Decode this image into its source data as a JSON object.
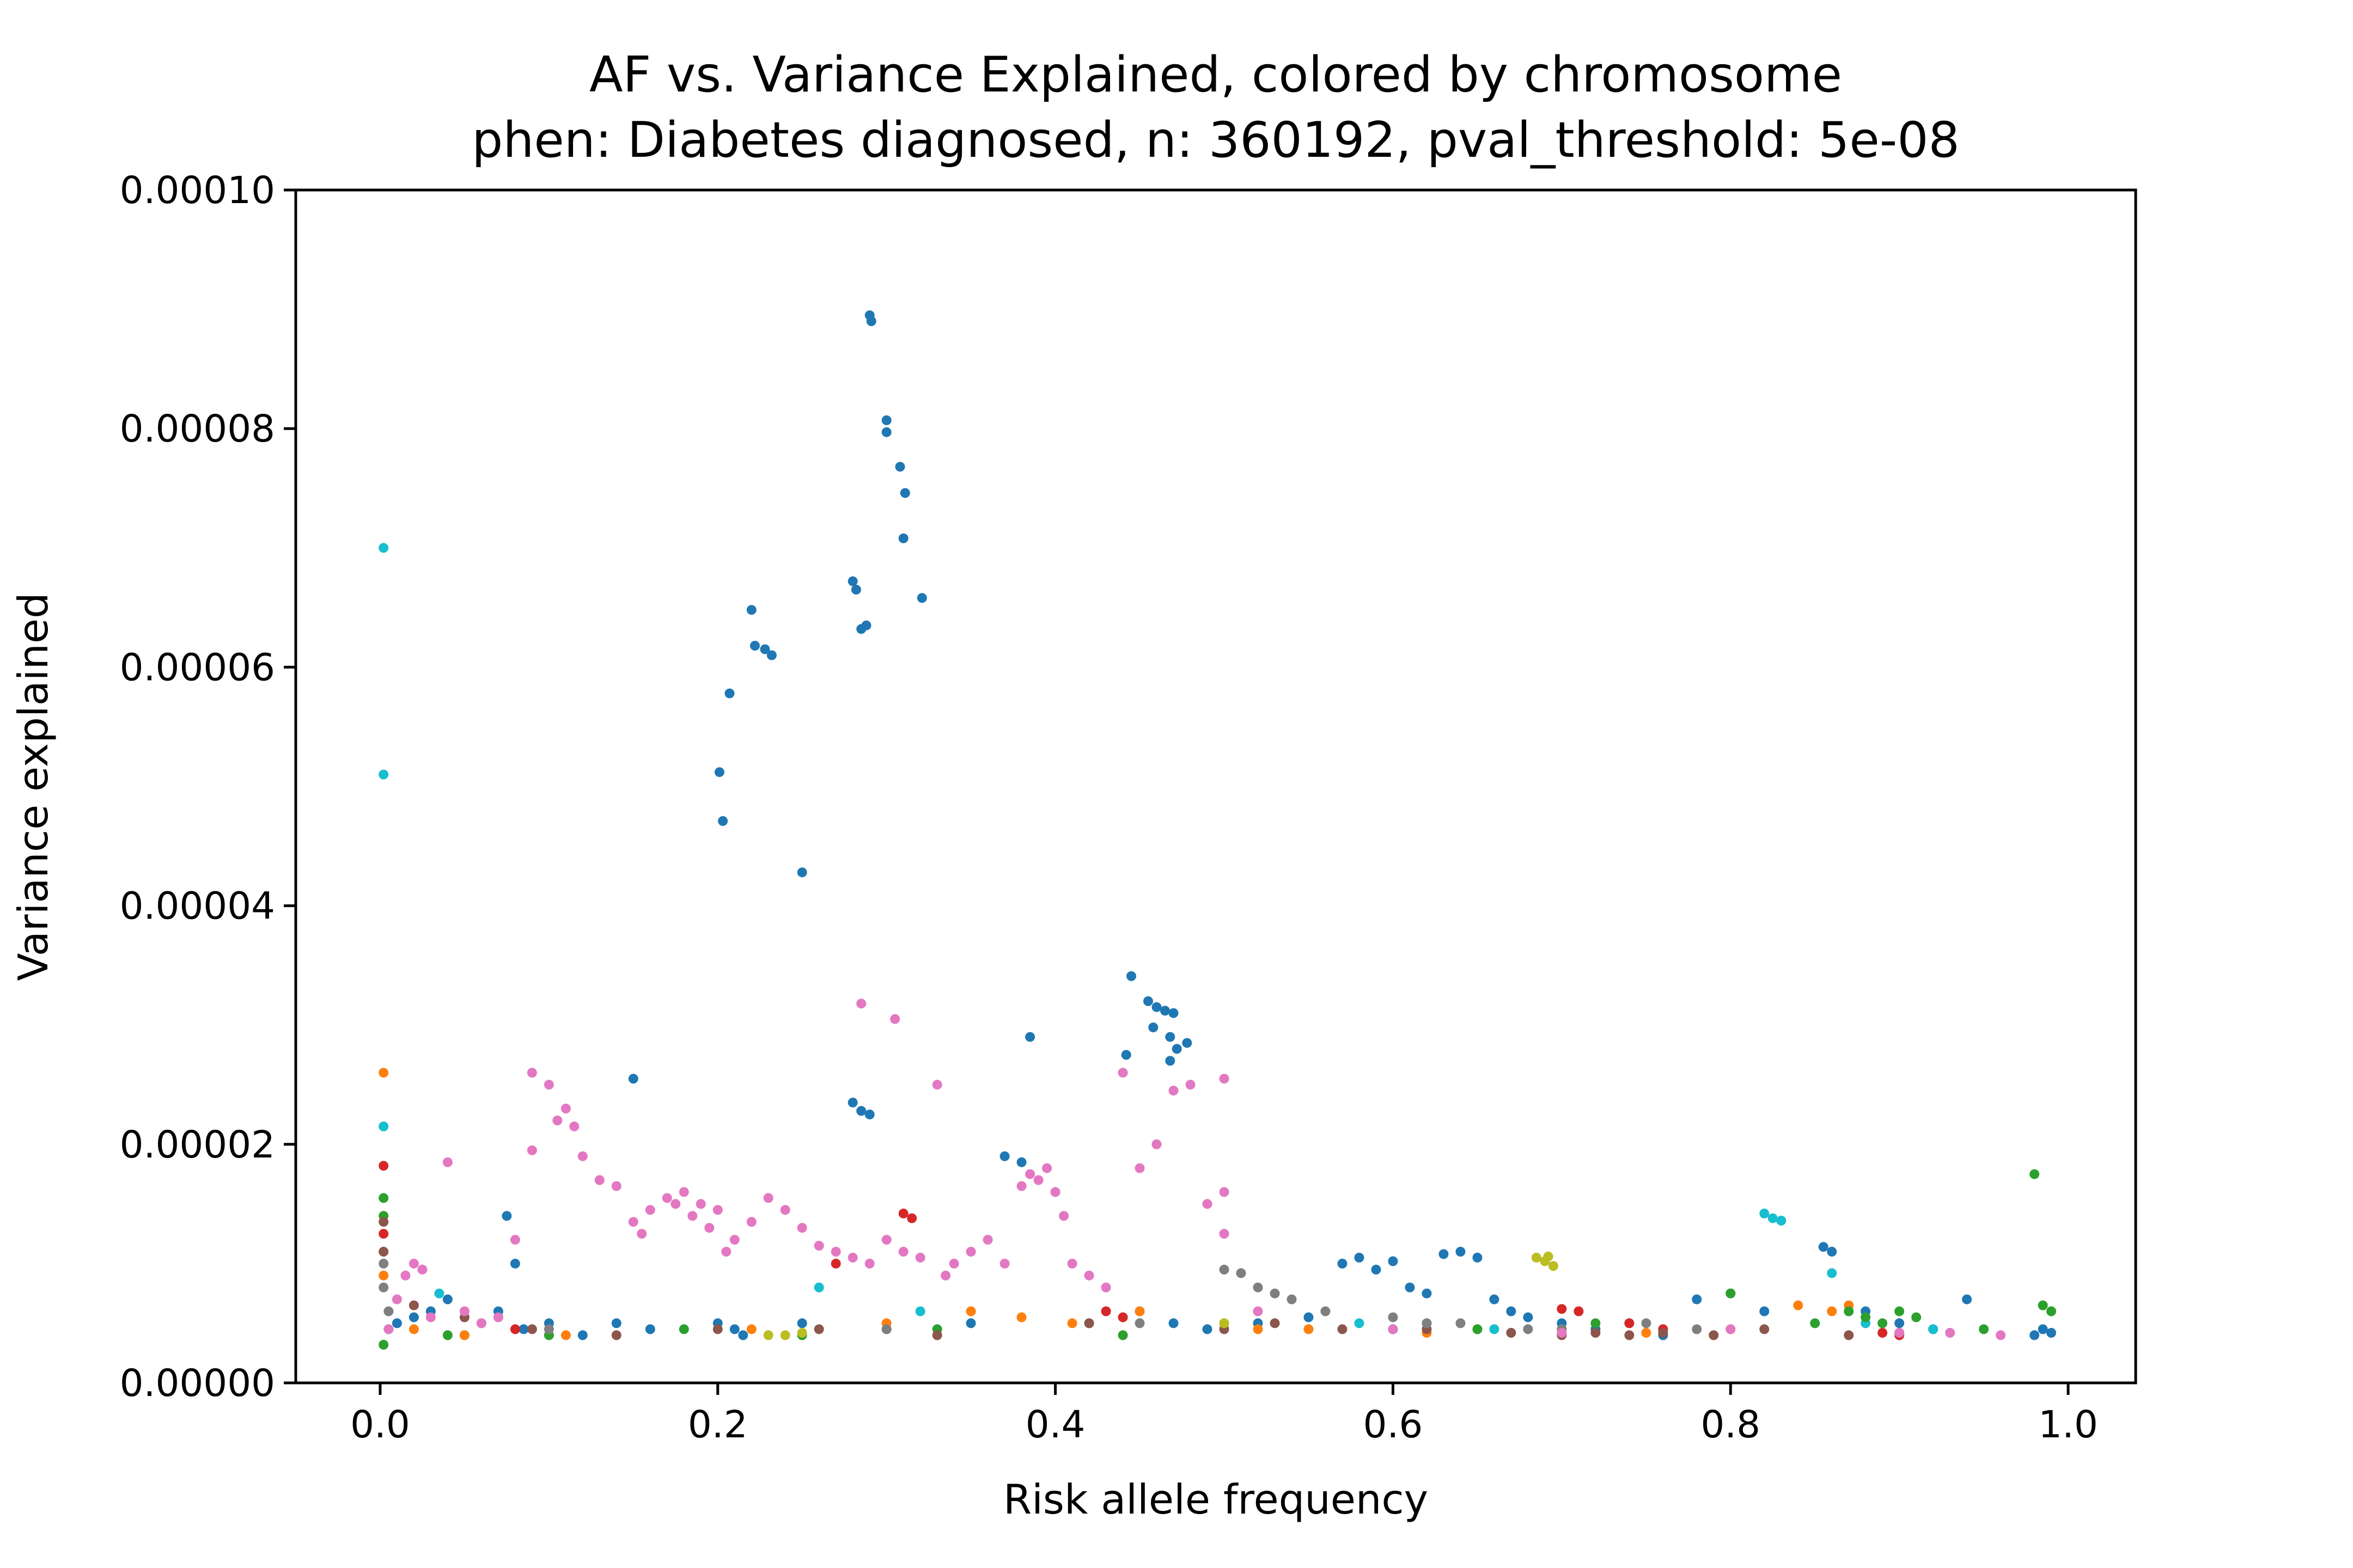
{
  "chart_data": {
    "type": "scatter",
    "title": "AF vs. Variance Explained, colored by chromosome",
    "subtitle": "phen: Diabetes diagnosed, n: 360192, pval_threshold: 5e-08",
    "xlabel": "Risk allele frequency",
    "ylabel": "Variance explained",
    "xlim": [
      -0.05,
      1.04
    ],
    "ylim": [
      0,
      0.0001
    ],
    "xticks": [
      "0.0",
      "0.2",
      "0.4",
      "0.6",
      "0.8",
      "1.0"
    ],
    "yticks": [
      "0.00000",
      "0.00002",
      "0.00004",
      "0.00006",
      "0.00008",
      "0.00010"
    ],
    "grid": false,
    "legend": "none",
    "series_colors": {
      "blue": "#1f77b4",
      "orange": "#ff7f0e",
      "green": "#2ca02c",
      "red": "#d62728",
      "brown": "#8c564b",
      "pink": "#e377c2",
      "gray": "#7f7f7f",
      "olive": "#bcbd22",
      "cyan": "#17becf"
    },
    "series": [
      {
        "color": "blue",
        "x": [
          0.29,
          0.291,
          0.3,
          0.3,
          0.308,
          0.311,
          0.31,
          0.321,
          0.28,
          0.282,
          0.285,
          0.288,
          0.22,
          0.222,
          0.228,
          0.232,
          0.207,
          0.201,
          0.203,
          0.25,
          0.445,
          0.455,
          0.46,
          0.465,
          0.47,
          0.458,
          0.468,
          0.472,
          0.478,
          0.468,
          0.442,
          0.385,
          0.15,
          0.28,
          0.285,
          0.29,
          0.075,
          0.08,
          0.005,
          0.01,
          0.02,
          0.03,
          0.04,
          0.05,
          0.06,
          0.07,
          0.085,
          0.1,
          0.12,
          0.14,
          0.16,
          0.2,
          0.21,
          0.215,
          0.25,
          0.3,
          0.35,
          0.37,
          0.38,
          0.42,
          0.45,
          0.47,
          0.49,
          0.52,
          0.55,
          0.57,
          0.58,
          0.59,
          0.6,
          0.61,
          0.62,
          0.63,
          0.64,
          0.65,
          0.66,
          0.67,
          0.68,
          0.7,
          0.72,
          0.74,
          0.76,
          0.78,
          0.8,
          0.82,
          0.855,
          0.86,
          0.88,
          0.9,
          0.92,
          0.94,
          0.98,
          0.985,
          0.99
        ],
        "y": [
          8.95e-05,
          8.9e-05,
          8.07e-05,
          7.97e-05,
          7.68e-05,
          7.46e-05,
          7.08e-05,
          6.58e-05,
          6.72e-05,
          6.65e-05,
          6.32e-05,
          6.35e-05,
          6.48e-05,
          6.18e-05,
          6.15e-05,
          6.1e-05,
          5.78e-05,
          5.12e-05,
          4.71e-05,
          4.28e-05,
          3.41e-05,
          3.2e-05,
          3.15e-05,
          3.12e-05,
          3.1e-05,
          2.98e-05,
          2.9e-05,
          2.8e-05,
          2.85e-05,
          2.7e-05,
          2.75e-05,
          2.9e-05,
          2.55e-05,
          2.35e-05,
          2.28e-05,
          2.25e-05,
          1.4e-05,
          1e-05,
          4.5e-06,
          5e-06,
          5.5e-06,
          6e-06,
          7e-06,
          4e-06,
          5e-06,
          6e-06,
          4.5e-06,
          5e-06,
          4e-06,
          5e-06,
          4.5e-06,
          5e-06,
          4.5e-06,
          4e-06,
          5e-06,
          4.5e-06,
          5e-06,
          1.9e-05,
          1.85e-05,
          5e-06,
          6e-06,
          5e-06,
          4.5e-06,
          5e-06,
          5.5e-06,
          1e-05,
          1.05e-05,
          9.5e-06,
          1.02e-05,
          8e-06,
          7.5e-06,
          1.08e-05,
          1.1e-05,
          1.05e-05,
          7e-06,
          6e-06,
          5.5e-06,
          5e-06,
          4.5e-06,
          5e-06,
          4e-06,
          7e-06,
          7.5e-06,
          6e-06,
          1.14e-05,
          1.1e-05,
          6e-06,
          5e-06,
          4.5e-06,
          7e-06,
          4e-06,
          4.5e-06,
          4.2e-06
        ]
      },
      {
        "color": "cyan",
        "x": [
          0.002,
          0.002,
          0.002,
          0.035,
          0.32,
          0.26,
          0.55,
          0.58,
          0.6,
          0.62,
          0.66,
          0.82,
          0.825,
          0.83,
          0.86,
          0.88,
          0.92
        ],
        "y": [
          7e-05,
          5.1e-05,
          2.15e-05,
          7.5e-06,
          6e-06,
          8e-06,
          4.5e-06,
          5e-06,
          4.5e-06,
          5e-06,
          4.5e-06,
          1.42e-05,
          1.38e-05,
          1.36e-05,
          9.2e-06,
          5e-06,
          4.5e-06
        ]
      },
      {
        "color": "orange",
        "x": [
          0.002,
          0.002,
          0.02,
          0.05,
          0.11,
          0.22,
          0.3,
          0.35,
          0.38,
          0.41,
          0.45,
          0.5,
          0.52,
          0.55,
          0.62,
          0.65,
          0.7,
          0.75,
          0.8,
          0.84,
          0.86,
          0.87
        ],
        "y": [
          2.6e-05,
          9e-06,
          4.5e-06,
          4e-06,
          4e-06,
          4.5e-06,
          5e-06,
          6e-06,
          5.5e-06,
          5e-06,
          6e-06,
          5e-06,
          4.5e-06,
          4.5e-06,
          4.2e-06,
          4.5e-06,
          4.5e-06,
          4.2e-06,
          4.5e-06,
          6.5e-06,
          6e-06,
          6.5e-06
        ]
      },
      {
        "color": "green",
        "x": [
          0.002,
          0.002,
          0.002,
          0.04,
          0.1,
          0.18,
          0.25,
          0.33,
          0.44,
          0.5,
          0.6,
          0.65,
          0.72,
          0.76,
          0.8,
          0.85,
          0.87,
          0.88,
          0.89,
          0.9,
          0.91,
          0.95,
          0.98,
          0.985,
          0.99
        ],
        "y": [
          1.55e-05,
          1.4e-05,
          3.2e-06,
          4e-06,
          4e-06,
          4.5e-06,
          4e-06,
          4.5e-06,
          4e-06,
          5e-06,
          4.5e-06,
          4.5e-06,
          5e-06,
          4.5e-06,
          7.5e-06,
          5e-06,
          6e-06,
          5.5e-06,
          5e-06,
          6e-06,
          5.5e-06,
          4.5e-06,
          1.75e-05,
          6.5e-06,
          6e-06
        ]
      },
      {
        "color": "red",
        "x": [
          0.002,
          0.002,
          0.08,
          0.27,
          0.31,
          0.315,
          0.43,
          0.44,
          0.7,
          0.71,
          0.74,
          0.76,
          0.89,
          0.9
        ],
        "y": [
          1.82e-05,
          1.25e-05,
          4.5e-06,
          1e-05,
          1.42e-05,
          1.38e-05,
          6e-06,
          5.5e-06,
          6.2e-06,
          6e-06,
          5e-06,
          4.5e-06,
          4.2e-06,
          4e-06
        ]
      },
      {
        "color": "brown",
        "x": [
          0.002,
          0.002,
          0.02,
          0.05,
          0.09,
          0.14,
          0.2,
          0.26,
          0.33,
          0.42,
          0.5,
          0.53,
          0.57,
          0.62,
          0.67,
          0.7,
          0.72,
          0.74,
          0.76,
          0.79,
          0.82,
          0.87,
          0.9
        ],
        "y": [
          1.35e-05,
          1.1e-05,
          6.5e-06,
          5.5e-06,
          4.5e-06,
          4e-06,
          4.5e-06,
          4.5e-06,
          4e-06,
          5e-06,
          4.5e-06,
          5e-06,
          4.5e-06,
          4.5e-06,
          4.2e-06,
          4e-06,
          4.2e-06,
          4e-06,
          4.2e-06,
          4e-06,
          4.5e-06,
          4e-06,
          4.2e-06
        ]
      },
      {
        "color": "gray",
        "x": [
          0.002,
          0.002,
          0.005,
          0.1,
          0.3,
          0.45,
          0.5,
          0.51,
          0.52,
          0.53,
          0.54,
          0.56,
          0.6,
          0.62,
          0.64,
          0.68,
          0.7,
          0.75,
          0.78
        ],
        "y": [
          1e-05,
          8e-06,
          6e-06,
          4.5e-06,
          4.5e-06,
          5e-06,
          9.5e-06,
          9.2e-06,
          8e-06,
          7.5e-06,
          7e-06,
          6e-06,
          5.5e-06,
          5e-06,
          5e-06,
          4.5e-06,
          4.5e-06,
          5e-06,
          4.5e-06
        ]
      },
      {
        "color": "olive",
        "x": [
          0.23,
          0.24,
          0.25,
          0.5,
          0.685,
          0.69,
          0.695,
          0.692,
          0.8
        ],
        "y": [
          4e-06,
          4e-06,
          4.2e-06,
          5e-06,
          1.05e-05,
          1.02e-05,
          9.8e-06,
          1.06e-05,
          4.5e-06
        ]
      },
      {
        "color": "pink",
        "x": [
          0.005,
          0.01,
          0.015,
          0.02,
          0.025,
          0.03,
          0.04,
          0.05,
          0.06,
          0.07,
          0.08,
          0.09,
          0.09,
          0.1,
          0.105,
          0.11,
          0.115,
          0.12,
          0.13,
          0.14,
          0.15,
          0.155,
          0.16,
          0.17,
          0.175,
          0.18,
          0.185,
          0.19,
          0.195,
          0.2,
          0.205,
          0.21,
          0.22,
          0.23,
          0.24,
          0.25,
          0.26,
          0.27,
          0.28,
          0.285,
          0.29,
          0.3,
          0.305,
          0.31,
          0.32,
          0.33,
          0.335,
          0.34,
          0.35,
          0.36,
          0.37,
          0.38,
          0.385,
          0.39,
          0.395,
          0.4,
          0.405,
          0.41,
          0.42,
          0.43,
          0.44,
          0.45,
          0.46,
          0.47,
          0.48,
          0.49,
          0.5,
          0.5,
          0.5,
          0.52,
          0.6,
          0.7,
          0.8,
          0.9,
          0.93,
          0.96
        ],
        "y": [
          4.5e-06,
          7e-06,
          9e-06,
          1e-05,
          9.5e-06,
          5.5e-06,
          1.85e-05,
          6e-06,
          5e-06,
          5.5e-06,
          1.2e-05,
          1.95e-05,
          2.6e-05,
          2.5e-05,
          2.2e-05,
          2.3e-05,
          2.15e-05,
          1.9e-05,
          1.7e-05,
          1.65e-05,
          1.35e-05,
          1.25e-05,
          1.45e-05,
          1.55e-05,
          1.5e-05,
          1.6e-05,
          1.4e-05,
          1.5e-05,
          1.3e-05,
          1.45e-05,
          1.1e-05,
          1.2e-05,
          1.35e-05,
          1.55e-05,
          1.45e-05,
          1.3e-05,
          1.15e-05,
          1.1e-05,
          1.05e-05,
          3.18e-05,
          1e-05,
          1.2e-05,
          3.05e-05,
          1.1e-05,
          1.05e-05,
          2.5e-05,
          9e-06,
          1e-05,
          1.1e-05,
          1.2e-05,
          1e-05,
          1.65e-05,
          1.75e-05,
          1.7e-05,
          1.8e-05,
          1.6e-05,
          1.4e-05,
          1e-05,
          9e-06,
          8e-06,
          2.6e-05,
          1.8e-05,
          2e-05,
          2.45e-05,
          2.5e-05,
          1.5e-05,
          1.25e-05,
          1.6e-05,
          2.55e-05,
          6e-06,
          4.5e-06,
          4.2e-06,
          4.5e-06,
          4.2e-06,
          4.2e-06,
          4e-06
        ]
      }
    ]
  }
}
